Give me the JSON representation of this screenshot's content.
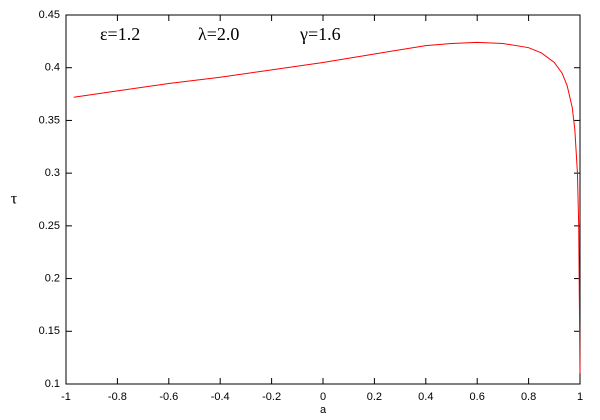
{
  "chart_data": {
    "type": "line",
    "x": [
      -0.97,
      -0.8,
      -0.6,
      -0.4,
      -0.2,
      0,
      0.2,
      0.4,
      0.5,
      0.6,
      0.7,
      0.8,
      0.85,
      0.9,
      0.93,
      0.95,
      0.97,
      0.98,
      0.99,
      0.995,
      1.0
    ],
    "series": [
      {
        "color": "#ff0000",
        "values": [
          0.372,
          0.378,
          0.385,
          0.391,
          0.398,
          0.405,
          0.413,
          0.421,
          0.423,
          0.424,
          0.423,
          0.419,
          0.414,
          0.405,
          0.395,
          0.383,
          0.362,
          0.341,
          0.3,
          0.25,
          0.11
        ]
      }
    ],
    "xlim": [
      -1,
      1
    ],
    "ylim": [
      0.1,
      0.45
    ],
    "xticks": [
      -1,
      -0.8,
      -0.6,
      -0.4,
      -0.2,
      0,
      0.2,
      0.4,
      0.6,
      0.8,
      1
    ],
    "yticks": [
      0.1,
      0.15,
      0.2,
      0.25,
      0.3,
      0.35,
      0.4,
      0.45
    ],
    "xlabel": "a",
    "ylabel": "τ",
    "annotations": [
      "ε=1.2",
      "λ=2.0",
      "γ=1.6"
    ]
  }
}
